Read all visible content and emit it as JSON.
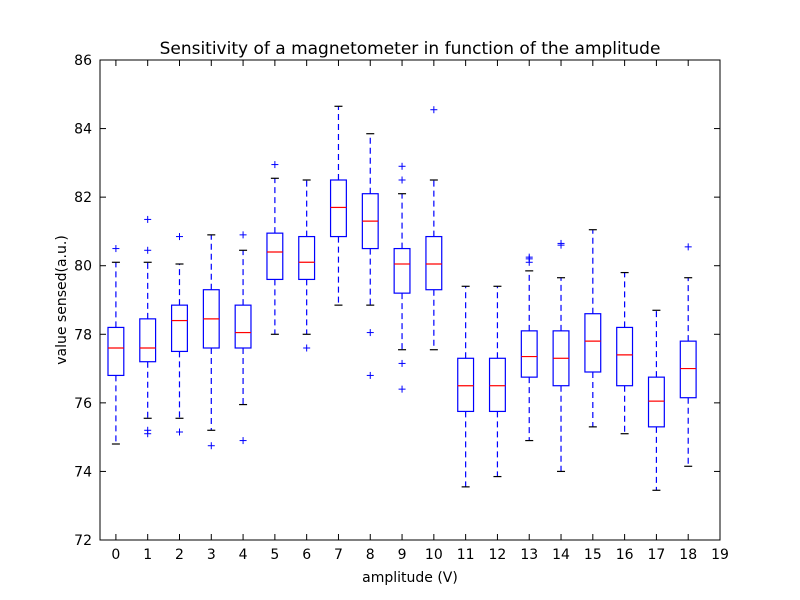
{
  "chart_data": {
    "type": "box",
    "title": "Sensitivity of a magnetometer in function of the amplitude",
    "xlabel": "amplitude (V)",
    "ylabel": "value sensed(a.u.)",
    "xlim": [
      -0.5,
      19
    ],
    "ylim": [
      72,
      86
    ],
    "xticks": [
      "0",
      "1",
      "2",
      "3",
      "4",
      "5",
      "6",
      "7",
      "8",
      "9",
      "10",
      "11",
      "12",
      "13",
      "14",
      "15",
      "16",
      "17",
      "18",
      "19"
    ],
    "yticks": [
      "72",
      "74",
      "76",
      "78",
      "80",
      "82",
      "84",
      "86"
    ],
    "grid": false,
    "legend": "none",
    "colors": {
      "box": "#0000ff",
      "median": "#ff0000",
      "cap": "#000000",
      "flier": "#0000ff"
    },
    "boxes": [
      {
        "x": 0,
        "whislo": 74.8,
        "q1": 76.8,
        "med": 77.6,
        "q3": 78.2,
        "whishi": 80.1,
        "fliers": [
          80.5
        ]
      },
      {
        "x": 1,
        "whislo": 75.55,
        "q1": 77.2,
        "med": 77.6,
        "q3": 78.45,
        "whishi": 80.1,
        "fliers": [
          75.2,
          75.1,
          80.45,
          81.35
        ]
      },
      {
        "x": 2,
        "whislo": 75.55,
        "q1": 77.5,
        "med": 78.4,
        "q3": 78.85,
        "whishi": 80.05,
        "fliers": [
          75.15,
          80.85
        ]
      },
      {
        "x": 3,
        "whislo": 75.2,
        "q1": 77.6,
        "med": 78.45,
        "q3": 79.3,
        "whishi": 80.9,
        "fliers": [
          74.75
        ]
      },
      {
        "x": 4,
        "whislo": 75.95,
        "q1": 77.6,
        "med": 78.05,
        "q3": 78.85,
        "whishi": 80.45,
        "fliers": [
          74.9,
          80.9
        ]
      },
      {
        "x": 5,
        "whislo": 78.0,
        "q1": 79.6,
        "med": 80.4,
        "q3": 80.95,
        "whishi": 82.55,
        "fliers": [
          82.95
        ]
      },
      {
        "x": 6,
        "whislo": 78.0,
        "q1": 79.6,
        "med": 80.1,
        "q3": 80.85,
        "whishi": 82.5,
        "fliers": [
          77.6
        ]
      },
      {
        "x": 7,
        "whislo": 78.85,
        "q1": 80.85,
        "med": 81.7,
        "q3": 82.5,
        "whishi": 84.65,
        "fliers": []
      },
      {
        "x": 8,
        "whislo": 78.85,
        "q1": 80.5,
        "med": 81.3,
        "q3": 82.1,
        "whishi": 83.85,
        "fliers": [
          78.05,
          76.8
        ]
      },
      {
        "x": 9,
        "whislo": 77.55,
        "q1": 79.2,
        "med": 80.05,
        "q3": 80.5,
        "whishi": 82.1,
        "fliers": [
          77.15,
          76.4,
          82.5,
          82.9
        ]
      },
      {
        "x": 10,
        "whislo": 77.55,
        "q1": 79.3,
        "med": 80.05,
        "q3": 80.85,
        "whishi": 82.5,
        "fliers": [
          84.55
        ]
      },
      {
        "x": 11,
        "whislo": 73.55,
        "q1": 75.75,
        "med": 76.5,
        "q3": 77.3,
        "whishi": 79.4,
        "fliers": []
      },
      {
        "x": 12,
        "whislo": 73.85,
        "q1": 75.75,
        "med": 76.5,
        "q3": 77.3,
        "whishi": 79.4,
        "fliers": []
      },
      {
        "x": 13,
        "whislo": 74.9,
        "q1": 76.75,
        "med": 77.35,
        "q3": 78.1,
        "whishi": 79.85,
        "fliers": [
          80.1,
          80.2,
          80.25
        ]
      },
      {
        "x": 14,
        "whislo": 74.0,
        "q1": 76.5,
        "med": 77.3,
        "q3": 78.1,
        "whishi": 79.65,
        "fliers": [
          80.6,
          80.65
        ]
      },
      {
        "x": 15,
        "whislo": 75.3,
        "q1": 76.9,
        "med": 77.8,
        "q3": 78.6,
        "whishi": 81.05,
        "fliers": []
      },
      {
        "x": 16,
        "whislo": 75.1,
        "q1": 76.5,
        "med": 77.4,
        "q3": 78.2,
        "whishi": 79.8,
        "fliers": []
      },
      {
        "x": 17,
        "whislo": 73.45,
        "q1": 75.3,
        "med": 76.05,
        "q3": 76.75,
        "whishi": 78.7,
        "fliers": []
      },
      {
        "x": 18,
        "whislo": 74.15,
        "q1": 76.15,
        "med": 77.0,
        "q3": 77.8,
        "whishi": 79.65,
        "fliers": [
          80.55
        ]
      }
    ]
  }
}
